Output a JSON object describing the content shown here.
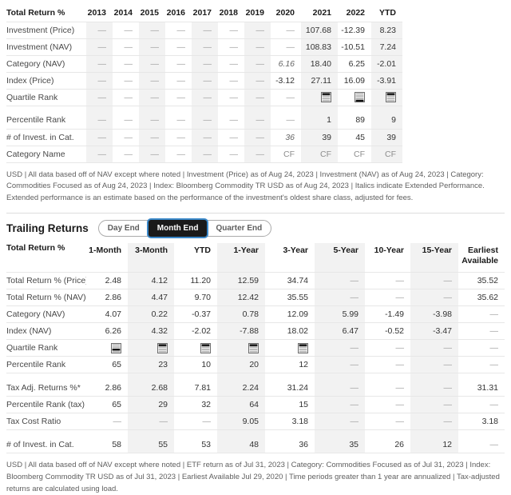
{
  "annual_table": {
    "title": "Total Return %",
    "columns": [
      "2013",
      "2014",
      "2015",
      "2016",
      "2017",
      "2018",
      "2019",
      "2020",
      "2021",
      "2022",
      "YTD"
    ],
    "shaded_columns": [
      0,
      2,
      4,
      6,
      8,
      10
    ],
    "shade_header": false,
    "rows": [
      {
        "label": "Investment (Price)",
        "cells": [
          "—",
          "—",
          "—",
          "—",
          "—",
          "—",
          "—",
          "—",
          "107.68",
          "-12.39",
          "8.23"
        ]
      },
      {
        "label": "Investment (NAV)",
        "cells": [
          "—",
          "—",
          "—",
          "—",
          "—",
          "—",
          "—",
          "—",
          "108.83",
          "-10.51",
          "7.24"
        ]
      },
      {
        "label": "Category (NAV)",
        "cells": [
          "—",
          "—",
          "—",
          "—",
          "—",
          "—",
          "—",
          {
            "t": "6.16",
            "style": "italic"
          },
          "18.40",
          "6.25",
          "-2.01"
        ]
      },
      {
        "label": "Index (Price)",
        "cells": [
          "—",
          "—",
          "—",
          "—",
          "—",
          "—",
          "—",
          "-3.12",
          "27.11",
          "16.09",
          "-3.91"
        ]
      },
      {
        "label": "Quartile Rank",
        "cells": [
          "—",
          "—",
          "—",
          "—",
          "—",
          "—",
          "—",
          "—",
          {
            "q": 1
          },
          {
            "q": 4
          },
          {
            "q": 1
          }
        ]
      },
      {
        "type": "spacer"
      },
      {
        "label": "Percentile Rank",
        "cells": [
          "—",
          "—",
          "—",
          "—",
          "—",
          "—",
          "—",
          "—",
          "1",
          "89",
          "9"
        ]
      },
      {
        "label": "# of Invest. in Cat.",
        "cells": [
          "—",
          "—",
          "—",
          "—",
          "—",
          "—",
          "—",
          {
            "t": "36",
            "style": "italic"
          },
          "39",
          "45",
          "39"
        ]
      },
      {
        "label": "Category Name",
        "cells": [
          "—",
          "—",
          "—",
          "—",
          "—",
          "—",
          "—",
          {
            "t": "CF",
            "style": "muted"
          },
          {
            "t": "CF",
            "style": "muted"
          },
          {
            "t": "CF",
            "style": "muted"
          },
          {
            "t": "CF",
            "style": "muted"
          }
        ]
      }
    ]
  },
  "trailing_section": {
    "heading": "Trailing Returns",
    "toggle": {
      "options": [
        "Day End",
        "Month End",
        "Quarter End"
      ],
      "selected": "Month End"
    }
  },
  "trailing_table": {
    "title": "Total Return %",
    "columns": [
      "1-Month",
      "3-Month",
      "YTD",
      "1-Year",
      "3-Year",
      "5-Year",
      "10-Year",
      "15-Year",
      "Earliest Available"
    ],
    "shaded_columns": [
      1,
      3,
      5,
      7
    ],
    "shade_header": true,
    "rows": [
      {
        "label": "Total Return % (Price)",
        "cells": [
          "2.48",
          "4.12",
          "11.20",
          "12.59",
          "34.74",
          "—",
          "—",
          "—",
          "35.52"
        ]
      },
      {
        "label": "Total Return % (NAV)",
        "cells": [
          "2.86",
          "4.47",
          "9.70",
          "12.42",
          "35.55",
          "—",
          "—",
          "—",
          "35.62"
        ]
      },
      {
        "label": "Category (NAV)",
        "cells": [
          "4.07",
          "0.22",
          "-0.37",
          "0.78",
          "12.09",
          "5.99",
          "-1.49",
          "-3.98",
          "—"
        ]
      },
      {
        "label": "Index (NAV)",
        "cells": [
          "6.26",
          "4.32",
          "-2.02",
          "-7.88",
          "18.02",
          "6.47",
          "-0.52",
          "-3.47",
          "—"
        ]
      },
      {
        "label": "Quartile Rank",
        "cells": [
          {
            "q": 3
          },
          {
            "q": 1
          },
          {
            "q": 1
          },
          {
            "q": 1
          },
          {
            "q": 1
          },
          "—",
          "—",
          "—",
          "—"
        ]
      },
      {
        "label": "Percentile Rank",
        "cells": [
          "65",
          "23",
          "10",
          "20",
          "12",
          "—",
          "—",
          "—",
          "—"
        ]
      },
      {
        "type": "spacer"
      },
      {
        "label": "Tax Adj. Returns %*",
        "cells": [
          "2.86",
          "2.68",
          "7.81",
          "2.24",
          "31.24",
          "—",
          "—",
          "—",
          "31.31"
        ]
      },
      {
        "label": "Percentile Rank (tax)",
        "cells": [
          "65",
          "29",
          "32",
          "64",
          "15",
          "—",
          "—",
          "—",
          "—"
        ]
      },
      {
        "label": "Tax Cost Ratio",
        "cells": [
          "—",
          "—",
          "—",
          "9.05",
          "3.18",
          "—",
          "—",
          "—",
          "3.18"
        ]
      },
      {
        "type": "spacer"
      },
      {
        "label": "# of Invest. in Cat.",
        "cells": [
          "58",
          "55",
          "53",
          "48",
          "36",
          "35",
          "26",
          "12",
          "—"
        ]
      }
    ]
  },
  "footnotes": {
    "annual": "USD | All data based off of NAV except where noted | Investment (Price) as of Aug 24, 2023 | Investment (NAV) as of Aug 24, 2023 | Category: Commodities Focused as of Aug 24, 2023 | Index: Bloomberg Commodity TR USD as of Aug 24, 2023 | Italics indicate Extended Performance. Extended performance is an estimate based on the performance of the investment's oldest share class, adjusted for fees.",
    "trailing": "USD | All data based off of NAV except where noted | ETF return as of Jul 31, 2023 | Category: Commodities Focused as of Jul 31, 2023 | Index: Bloomberg Commodity TR USD as of Jul 31, 2023 | Earliest Available Jul 29, 2020 | Time periods greater than 1 year are annualized | Tax-adjusted returns are calculated using load."
  },
  "colors": {
    "column_shade": "#f2f2f2",
    "selected_toggle_bg": "#1a1a1a",
    "selected_toggle_outline": "#3a87c8",
    "quartile_active": "#111111",
    "quartile_inactive": "#b6b6b6"
  }
}
